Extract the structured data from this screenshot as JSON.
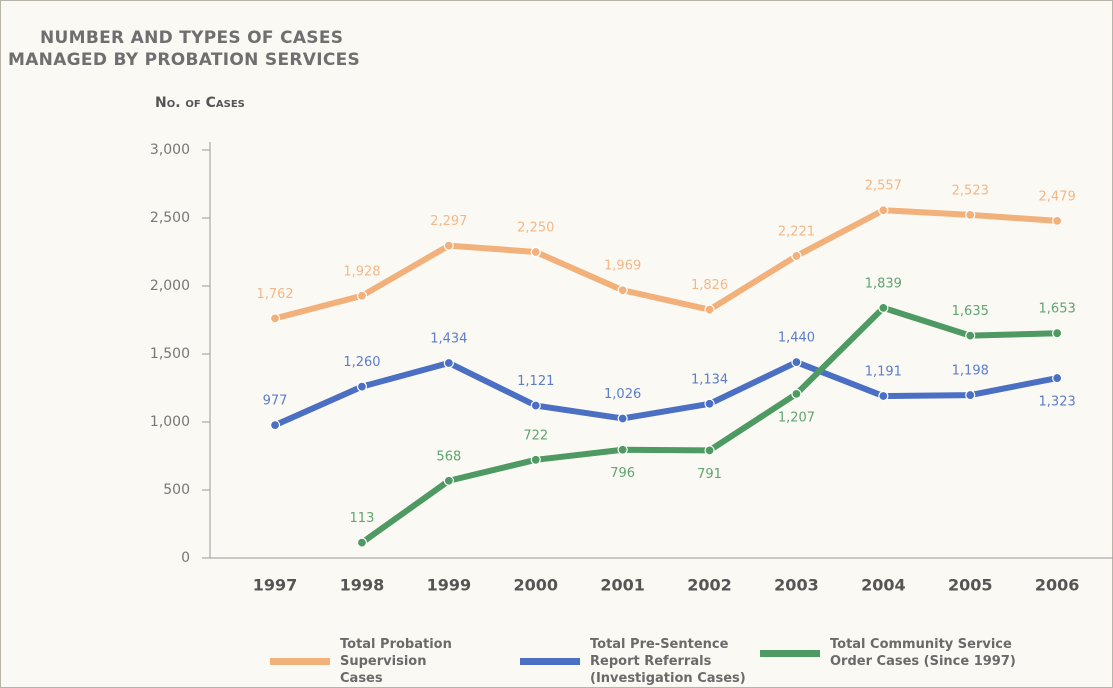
{
  "chart_data": {
    "type": "line",
    "title": [
      "NUMBER AND TYPES OF CASES",
      "MANAGED BY PROBATION SERVICES"
    ],
    "y_label": "No. of Cases",
    "categories": [
      "1997",
      "1998",
      "1999",
      "2000",
      "2001",
      "2002",
      "2003",
      "2004",
      "2005",
      "2006"
    ],
    "series": [
      {
        "name": "Total Probation Supervision Cases",
        "color": "#f2b07a",
        "values": [
          1762,
          1928,
          2297,
          2250,
          1969,
          1826,
          2221,
          2557,
          2523,
          2479
        ],
        "value_labels": [
          "1,762",
          "1,928",
          "2,297",
          "2,250",
          "1,969",
          "1,826",
          "2,221",
          "2,557",
          "2,523",
          "2,479"
        ]
      },
      {
        "name": "Total Pre-Sentence Report Referrals (Investigation Cases)",
        "color": "#4a6fc3",
        "values": [
          977,
          1260,
          1434,
          1121,
          1026,
          1134,
          1440,
          1191,
          1198,
          1323
        ],
        "value_labels": [
          "977",
          "1,260",
          "1,434",
          "1,121",
          "1,026",
          "1,134",
          "1,440",
          "1,191",
          "1,198",
          "1,323"
        ]
      },
      {
        "name": "Total Community Service Order Cases (Since 1997)",
        "color": "#4e9a62",
        "values": [
          null,
          113,
          568,
          722,
          796,
          791,
          1207,
          1839,
          1635,
          1653
        ],
        "value_labels": [
          null,
          "113",
          "568",
          "722",
          "796",
          "791",
          "1,207",
          "1,839",
          "1,635",
          "1,653"
        ]
      }
    ],
    "ylim": [
      0,
      3000
    ],
    "yticks": [
      0,
      500,
      {
        "value": 1000,
        "label": "1,000"
      },
      {
        "value": 1500,
        "label": "1,500"
      },
      {
        "value": 2000,
        "label": "2,000"
      },
      {
        "value": 2500,
        "label": "2,500"
      },
      {
        "value": 3000,
        "label": "3,000"
      }
    ],
    "grid": false
  }
}
